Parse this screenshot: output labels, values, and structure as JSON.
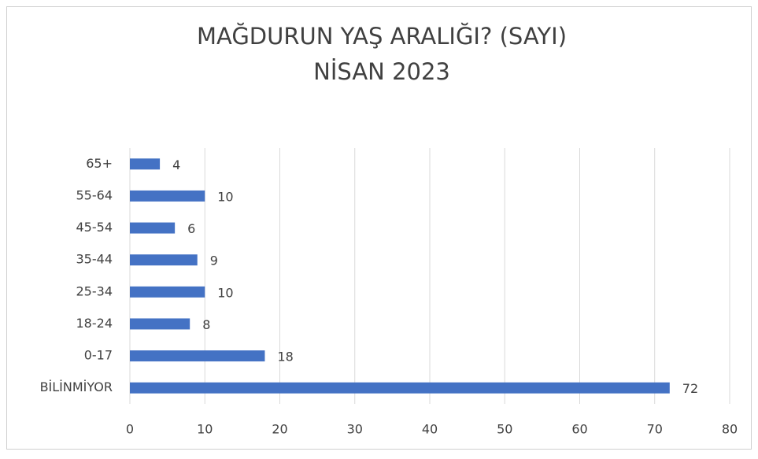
{
  "chart_data": {
    "type": "bar",
    "orientation": "horizontal",
    "title": "MAĞDURUN  YAŞ ARALIĞI? (SAYI)",
    "subtitle": "NİSAN 2023",
    "categories": [
      "BİLİNMİYOR",
      "0-17",
      "18-24",
      "25-34",
      "35-44",
      "45-54",
      "55-64",
      "65+"
    ],
    "values": [
      72,
      18,
      8,
      10,
      9,
      6,
      10,
      4
    ],
    "color": "#4472c4",
    "xlim": [
      0,
      80
    ],
    "xticks": [
      0,
      10,
      20,
      30,
      40,
      50,
      60,
      70,
      80
    ],
    "grid": true
  }
}
